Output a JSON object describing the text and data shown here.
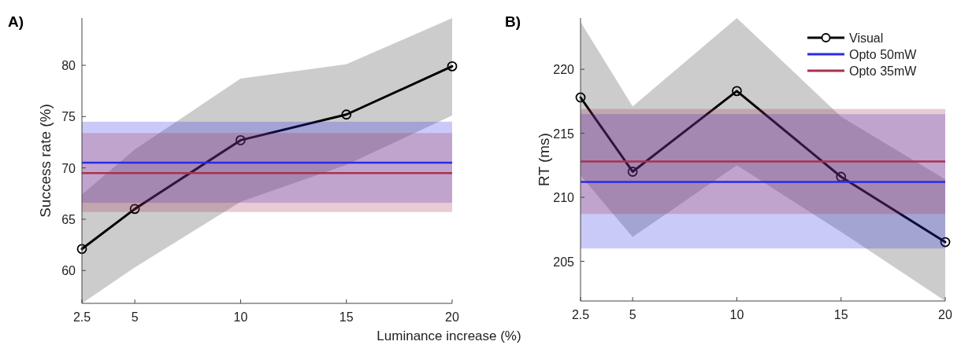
{
  "chart_data": [
    {
      "type": "line",
      "title": "A)",
      "xlabel": "Luminance increase (%)",
      "ylabel": "Success rate (%)",
      "x": [
        2.5,
        5,
        10,
        15,
        20
      ],
      "xlim": [
        2.5,
        20
      ],
      "xticks": [
        2.5,
        5,
        10,
        15,
        20
      ],
      "ylim": [
        56.8,
        84.6
      ],
      "yticks": [
        60,
        65,
        70,
        75,
        80
      ],
      "grid": false,
      "legend": false,
      "series": [
        {
          "color": "#000000",
          "marker": "circle",
          "values": [
            62.1,
            66.0,
            72.7,
            75.2,
            79.9
          ],
          "lower": [
            56.8,
            60.3,
            66.7,
            70.3,
            75.1
          ],
          "upper": [
            67.4,
            71.8,
            78.7,
            80.1,
            84.6
          ]
        }
      ],
      "bands": [
        {
          "axis": "y",
          "from": 66.6,
          "to": 74.5,
          "color": "#2a2ae8"
        },
        {
          "axis": "y",
          "from": 65.7,
          "to": 73.4,
          "color": "#a8324e"
        }
      ],
      "ref_lines": [
        {
          "axis": "y",
          "value": 70.5,
          "color": "#2a2ae8"
        },
        {
          "axis": "y",
          "value": 69.5,
          "color": "#a8324e"
        }
      ]
    },
    {
      "type": "line",
      "title": "B)",
      "ylabel": "RT (ms)",
      "x": [
        2.5,
        5,
        10,
        15,
        20
      ],
      "xlim": [
        2.5,
        20
      ],
      "xticks": [
        2.5,
        5,
        10,
        15,
        20
      ],
      "ylim": [
        201.9,
        224.0
      ],
      "yticks": [
        205,
        210,
        215,
        220
      ],
      "grid": false,
      "legend": "top right",
      "series": [
        {
          "name": "Visual",
          "color": "#000000",
          "marker": "circle",
          "values": [
            217.8,
            212.0,
            218.3,
            211.6,
            206.5
          ],
          "lower": [
            211.7,
            206.9,
            212.5,
            207.3,
            201.9
          ],
          "upper": [
            223.7,
            217.1,
            224.0,
            216.3,
            211.4
          ]
        }
      ],
      "bands": [
        {
          "axis": "y",
          "from": 206.0,
          "to": 216.5,
          "color": "#2a2ae8"
        },
        {
          "axis": "y",
          "from": 208.7,
          "to": 216.9,
          "color": "#a8324e"
        }
      ],
      "ref_lines": [
        {
          "axis": "y",
          "value": 211.2,
          "label": "Opto 50mW",
          "color": "#2a2ae8"
        },
        {
          "axis": "y",
          "value": 212.8,
          "label": "Opto 35mW",
          "color": "#a8324e"
        }
      ]
    }
  ]
}
